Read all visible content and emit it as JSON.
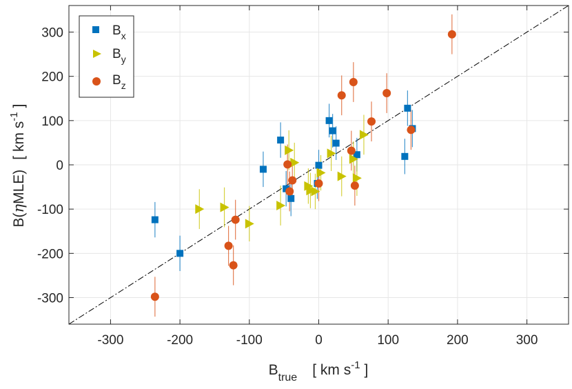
{
  "chart_data": {
    "type": "scatter",
    "title": "",
    "xlabel": "B_true [ km s^-1 ]",
    "ylabel": "B(ηMLE) [ km s^-1 ]",
    "xlim": [
      -360,
      360
    ],
    "ylim": [
      -360,
      360
    ],
    "xticks": [
      -300,
      -200,
      -100,
      0,
      100,
      200,
      300
    ],
    "yticks": [
      -300,
      -200,
      -100,
      0,
      100,
      200,
      300
    ],
    "xtick_labels": [
      "-300",
      "-200",
      "-100",
      "0",
      "100",
      "200",
      "300"
    ],
    "ytick_labels": [
      "-300",
      "-200",
      "-100",
      "0",
      "100",
      "200",
      "300"
    ],
    "grid": true,
    "reference_line": "y = x (dash-dot)",
    "legend_position": "top-left",
    "xlabel_parts": {
      "main": "B",
      "sub": "true",
      "bracket_open": "[ km s",
      "sup": "-1",
      "bracket_close": "]"
    },
    "ylabel_parts": {
      "main": "B(",
      "eta": "η",
      "rest": "MLE)",
      "bracket_open": "[ km s",
      "sup": "-1",
      "bracket_close": "]"
    },
    "series": [
      {
        "name": "B_x",
        "label_main": "B",
        "label_sub": "x",
        "marker": "square",
        "color": "#0072BD",
        "points": [
          {
            "x": -236,
            "y": -124,
            "err": 40
          },
          {
            "x": -200,
            "y": -200,
            "err": 40
          },
          {
            "x": -80,
            "y": -10,
            "err": 40
          },
          {
            "x": -55,
            "y": 56,
            "err": 40
          },
          {
            "x": -47,
            "y": -54,
            "err": 40
          },
          {
            "x": -40,
            "y": -76,
            "err": 40
          },
          {
            "x": 0,
            "y": -1,
            "err": 35
          },
          {
            "x": -2,
            "y": -42,
            "err": 35
          },
          {
            "x": 15,
            "y": 100,
            "err": 38
          },
          {
            "x": 20,
            "y": 77,
            "err": 38
          },
          {
            "x": 25,
            "y": 49,
            "err": 38
          },
          {
            "x": 55,
            "y": 23,
            "err": 38
          },
          {
            "x": 124,
            "y": 19,
            "err": 40
          },
          {
            "x": 128,
            "y": 128,
            "err": 40
          },
          {
            "x": 135,
            "y": 82,
            "err": 42
          }
        ]
      },
      {
        "name": "B_y",
        "label_main": "B",
        "label_sub": "y",
        "marker": "triangle-right",
        "color": "#C8C200",
        "points": [
          {
            "x": -172,
            "y": -100,
            "err": 45
          },
          {
            "x": -136,
            "y": -96,
            "err": 45
          },
          {
            "x": -100,
            "y": -133,
            "err": 40
          },
          {
            "x": -55,
            "y": -92,
            "err": 45
          },
          {
            "x": -43,
            "y": 33,
            "err": 45
          },
          {
            "x": -35,
            "y": 5,
            "err": 45
          },
          {
            "x": -15,
            "y": -48,
            "err": 40
          },
          {
            "x": -12,
            "y": -58,
            "err": 40
          },
          {
            "x": -5,
            "y": -60,
            "err": 40
          },
          {
            "x": 3,
            "y": -18,
            "err": 40
          },
          {
            "x": 18,
            "y": 26,
            "err": 40
          },
          {
            "x": 33,
            "y": -26,
            "err": 45
          },
          {
            "x": 50,
            "y": 13,
            "err": 40
          },
          {
            "x": 55,
            "y": -30,
            "err": 40
          },
          {
            "x": 65,
            "y": 68,
            "err": 45
          }
        ]
      },
      {
        "name": "B_z",
        "label_main": "B",
        "label_sub": "z",
        "marker": "circle",
        "color": "#D95319",
        "points": [
          {
            "x": -236,
            "y": -298,
            "err": 45
          },
          {
            "x": -130,
            "y": -183,
            "err": 45
          },
          {
            "x": -123,
            "y": -227,
            "err": 45
          },
          {
            "x": -120,
            "y": -124,
            "err": 45
          },
          {
            "x": -45,
            "y": 1,
            "err": 45
          },
          {
            "x": -42,
            "y": -60,
            "err": 45
          },
          {
            "x": -38,
            "y": -35,
            "err": 45
          },
          {
            "x": 0,
            "y": -42,
            "err": 40
          },
          {
            "x": 33,
            "y": 157,
            "err": 45
          },
          {
            "x": 47,
            "y": 32,
            "err": 45
          },
          {
            "x": 50,
            "y": 187,
            "err": 45
          },
          {
            "x": 52,
            "y": -47,
            "err": 45
          },
          {
            "x": 76,
            "y": 98,
            "err": 45
          },
          {
            "x": 98,
            "y": 162,
            "err": 45
          },
          {
            "x": 133,
            "y": 79,
            "err": 45
          },
          {
            "x": 192,
            "y": 295,
            "err": 45
          }
        ]
      }
    ]
  }
}
